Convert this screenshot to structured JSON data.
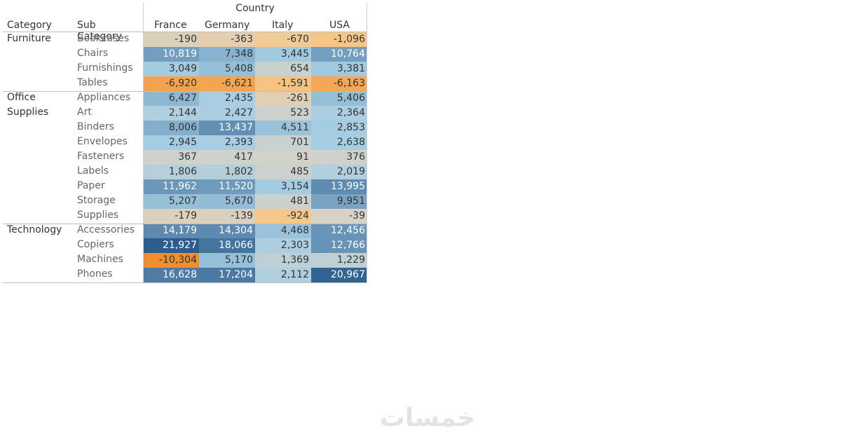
{
  "chart_data": {
    "type": "heatmap",
    "column_group_title": "Country",
    "row_headers": [
      "Category",
      "Sub Category"
    ],
    "columns": [
      "France",
      "Germany",
      "Italy",
      "USA"
    ],
    "rows": [
      {
        "category": "Furniture",
        "sub": "Bookcases",
        "values": [
          -190,
          -363,
          -670,
          -1096
        ],
        "labels": [
          "-190",
          "-363",
          "-670",
          "-1,096"
        ]
      },
      {
        "category": "",
        "sub": "Chairs",
        "values": [
          10819,
          7348,
          3445,
          10764
        ],
        "labels": [
          "10,819",
          "7,348",
          "3,445",
          "10,764"
        ]
      },
      {
        "category": "",
        "sub": "Furnishings",
        "values": [
          3049,
          5408,
          654,
          3381
        ],
        "labels": [
          "3,049",
          "5,408",
          "654",
          "3,381"
        ]
      },
      {
        "category": "",
        "sub": "Tables",
        "values": [
          -6920,
          -6621,
          -1591,
          -6163
        ],
        "labels": [
          "-6,920",
          "-6,621",
          "-1,591",
          "-6,163"
        ]
      },
      {
        "category": "Office",
        "sub": "Appliances",
        "values": [
          6427,
          2435,
          -261,
          5406
        ],
        "labels": [
          "6,427",
          "2,435",
          "-261",
          "5,406"
        ]
      },
      {
        "category": "Supplies",
        "sub": "Art",
        "values": [
          2144,
          2427,
          523,
          2364
        ],
        "labels": [
          "2,144",
          "2,427",
          "523",
          "2,364"
        ]
      },
      {
        "category": "",
        "sub": "Binders",
        "values": [
          8006,
          13437,
          4511,
          2853
        ],
        "labels": [
          "8,006",
          "13,437",
          "4,511",
          "2,853"
        ]
      },
      {
        "category": "",
        "sub": "Envelopes",
        "values": [
          2945,
          2393,
          701,
          2638
        ],
        "labels": [
          "2,945",
          "2,393",
          "701",
          "2,638"
        ]
      },
      {
        "category": "",
        "sub": "Fasteners",
        "values": [
          367,
          417,
          91,
          376
        ],
        "labels": [
          "367",
          "417",
          "91",
          "376"
        ]
      },
      {
        "category": "",
        "sub": "Labels",
        "values": [
          1806,
          1802,
          485,
          2019
        ],
        "labels": [
          "1,806",
          "1,802",
          "485",
          "2,019"
        ]
      },
      {
        "category": "",
        "sub": "Paper",
        "values": [
          11962,
          11520,
          3154,
          13995
        ],
        "labels": [
          "11,962",
          "11,520",
          "3,154",
          "13,995"
        ]
      },
      {
        "category": "",
        "sub": "Storage",
        "values": [
          5207,
          5670,
          481,
          9951
        ],
        "labels": [
          "5,207",
          "5,670",
          "481",
          "9,951"
        ]
      },
      {
        "category": "",
        "sub": "Supplies",
        "values": [
          -179,
          -139,
          -924,
          -39
        ],
        "labels": [
          "-179",
          "-139",
          "-924",
          "-39"
        ]
      },
      {
        "category": "Technology",
        "sub": "Accessories",
        "values": [
          14179,
          14304,
          4468,
          12456
        ],
        "labels": [
          "14,179",
          "14,304",
          "4,468",
          "12,456"
        ]
      },
      {
        "category": "",
        "sub": "Copiers",
        "values": [
          21927,
          18066,
          2303,
          12766
        ],
        "labels": [
          "21,927",
          "18,066",
          "2,303",
          "12,766"
        ]
      },
      {
        "category": "",
        "sub": "Machines",
        "values": [
          -10304,
          5170,
          1369,
          1229
        ],
        "labels": [
          "-10,304",
          "5,170",
          "1,369",
          "1,229"
        ]
      },
      {
        "category": "",
        "sub": "Phones",
        "values": [
          16628,
          17204,
          2112,
          20967
        ],
        "labels": [
          "16,628",
          "17,204",
          "2,112",
          "20,967"
        ]
      }
    ],
    "group_breaks_after_row": [
      3,
      12
    ],
    "color_scale": {
      "min": -10304,
      "max": 21927,
      "negative_color": "#f28e2b",
      "neutral_color": "#d5d2c8",
      "positive_color": "#2d5d8e"
    }
  },
  "watermark": {
    "text": "خمسات",
    "color": "#e3e3e3"
  }
}
